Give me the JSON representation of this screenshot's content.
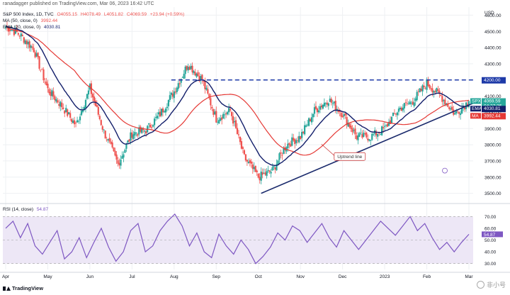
{
  "header": {
    "publisher": "ranadagger published on TradingView.com, Mar 06, 2023 16:42 UTC"
  },
  "legend": {
    "symbol": "S&P 500 Index, 1D, TVC",
    "o": "O4055.15",
    "h": "H4078.49",
    "l": "L4051.82",
    "c": "C4069.59",
    "change": "+23.94 (+0.59%)",
    "ma_label": "MA (50, close, 0)",
    "ma_value": "3992.44",
    "ema_label": "EMA (20, close, 0)",
    "ema_value": "4030.81",
    "rsi_label": "RSI (14, close)",
    "rsi_value": "54.87"
  },
  "axis": {
    "currency": "USD"
  },
  "annotation": {
    "uptrend": "Uptrend line"
  },
  "footer": {
    "brand": "TradingView",
    "watermark": "非小号"
  },
  "colors": {
    "up": "#26a69a",
    "down": "#ef5350",
    "ema": "#131f6b",
    "ma": "#e53935",
    "trend": "#1a2a6c",
    "resistance": "#1e3aa8",
    "rsi": "#7e57c2",
    "rsi_band": "#ede7f6"
  },
  "chart_data": [
    {
      "type": "candlestick",
      "x_ticks": [
        "Apr",
        "May",
        "Jun",
        "Jul",
        "Aug",
        "Sep",
        "Oct",
        "Nov",
        "Dec",
        "2023",
        "Feb",
        "Mar"
      ],
      "y_ticks": [
        3500,
        3600,
        3700,
        3800,
        3900,
        4000,
        4100,
        4200,
        4300,
        4400,
        4500,
        4600
      ],
      "ylim": [
        3450,
        4650
      ],
      "anchor_closes": [
        [
          "Apr",
          4530
        ],
        [
          "",
          4480
        ],
        [
          "",
          4390
        ],
        [
          "May",
          4140
        ],
        [
          "",
          4040
        ],
        [
          "",
          3920
        ],
        [
          "Jun",
          4150
        ],
        [
          "",
          3880
        ],
        [
          "",
          3680
        ],
        [
          "Jul",
          3870
        ],
        [
          "",
          3890
        ],
        [
          "",
          3990
        ],
        [
          "Aug",
          4130
        ],
        [
          "",
          4300
        ],
        [
          "",
          4200
        ],
        [
          "Sep",
          3960
        ],
        [
          "",
          4010
        ],
        [
          "",
          3720
        ],
        [
          "Oct",
          3600
        ],
        [
          "",
          3640
        ],
        [
          "",
          3800
        ],
        [
          "Nov",
          3850
        ],
        [
          "",
          4010
        ],
        [
          "",
          4080
        ],
        [
          "Dec",
          3990
        ],
        [
          "",
          3850
        ],
        [
          "",
          3850
        ],
        [
          "2023",
          3900
        ],
        [
          "",
          4020
        ],
        [
          "",
          4070
        ],
        [
          "Feb",
          4180
        ],
        [
          "",
          4100
        ],
        [
          "",
          3990
        ],
        [
          "Mar",
          4069.59
        ]
      ],
      "price_labels": {
        "resistance": "4200.00",
        "spx_name": "SPX",
        "spx_value": "4069.59",
        "spx_time": "04:27:36",
        "ema_name": "EMA",
        "ema_value": "4030.81",
        "ma_name": "MA",
        "ma_value": "3992.44"
      },
      "series": [
        {
          "name": "MA (50, close, 0)",
          "last": 3992.44
        },
        {
          "name": "EMA (20, close, 0)",
          "last": 4030.81
        }
      ],
      "resistance": 4200,
      "trendline": [
        [
          "Oct",
          3500
        ],
        [
          "Mar",
          4060
        ]
      ]
    },
    {
      "type": "line",
      "name": "RSI (14, close)",
      "y_ticks": [
        30,
        40,
        50,
        60,
        70
      ],
      "ylim": [
        25,
        78
      ],
      "band": [
        30,
        70
      ],
      "anchor_values": [
        60,
        66,
        52,
        64,
        45,
        38,
        48,
        58,
        34,
        40,
        52,
        35,
        48,
        60,
        44,
        32,
        40,
        58,
        64,
        40,
        45,
        58,
        66,
        72,
        62,
        45,
        56,
        40,
        35,
        55,
        45,
        38,
        50,
        42,
        30,
        36,
        44,
        56,
        50,
        62,
        58,
        48,
        56,
        64,
        52,
        44,
        58,
        50,
        42,
        50,
        58,
        66,
        60,
        54,
        62,
        70,
        58,
        64,
        52,
        42,
        48,
        40,
        48,
        54.87
      ],
      "last_label": "54.87"
    }
  ]
}
